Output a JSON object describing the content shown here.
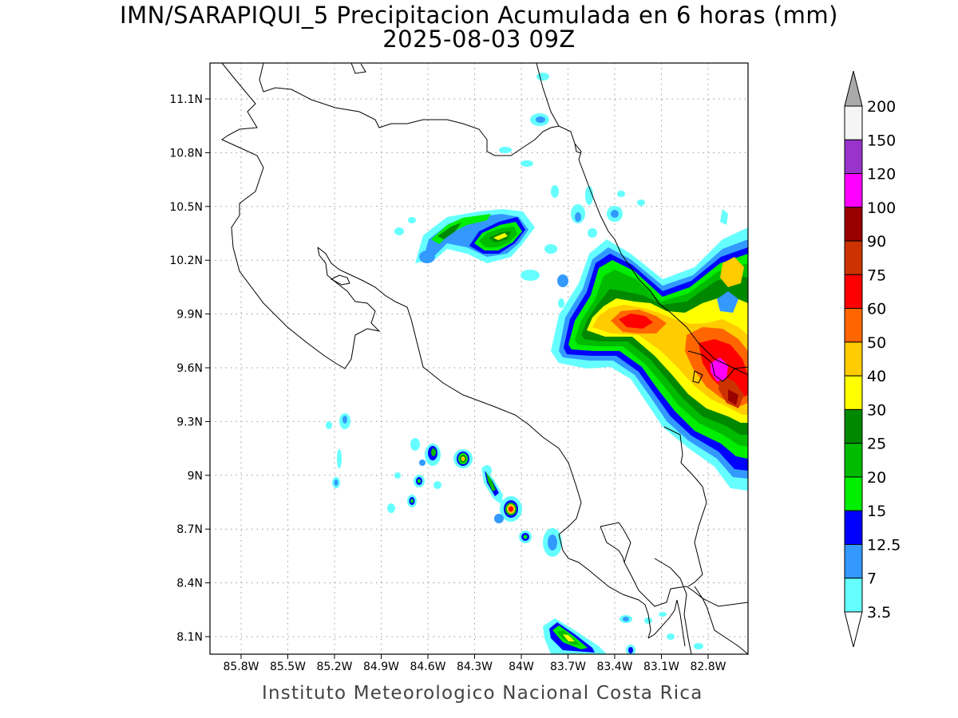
{
  "title": {
    "line1": "IMN/SARAPIQUI_5 Precipitacion Acumulada en 6 horas (mm)",
    "line2": "2025-08-03 09Z"
  },
  "credit": "Instituto Meteorologico Nacional Costa Rica",
  "map": {
    "lat_ticks": [
      "11.1N",
      "10.8N",
      "10.5N",
      "10.2N",
      "9.9N",
      "9.6N",
      "9.3N",
      "9N",
      "8.7N",
      "8.4N",
      "8.1N"
    ],
    "lon_ticks": [
      "85.8W",
      "85.5W",
      "85.2W",
      "84.9W",
      "84.6W",
      "84.3W",
      "84W",
      "83.7W",
      "83.4W",
      "83.1W",
      "82.8W"
    ],
    "grid": "dotted"
  },
  "legend": {
    "levels": [
      "3.5",
      "7",
      "12.5",
      "15",
      "20",
      "25",
      "30",
      "40",
      "50",
      "60",
      "75",
      "90",
      "100",
      "120",
      "150",
      "200"
    ],
    "colors": [
      "#66ffff",
      "#3399ff",
      "#0000ff",
      "#00ee00",
      "#00bb00",
      "#008800",
      "#ffff00",
      "#ffcc00",
      "#ff6600",
      "#ff0000",
      "#cc3300",
      "#990000",
      "#ff00ff",
      "#9933cc",
      "#f5f5f5"
    ],
    "over_color": "#aaaaaa",
    "under_color": "#ffffff"
  }
}
